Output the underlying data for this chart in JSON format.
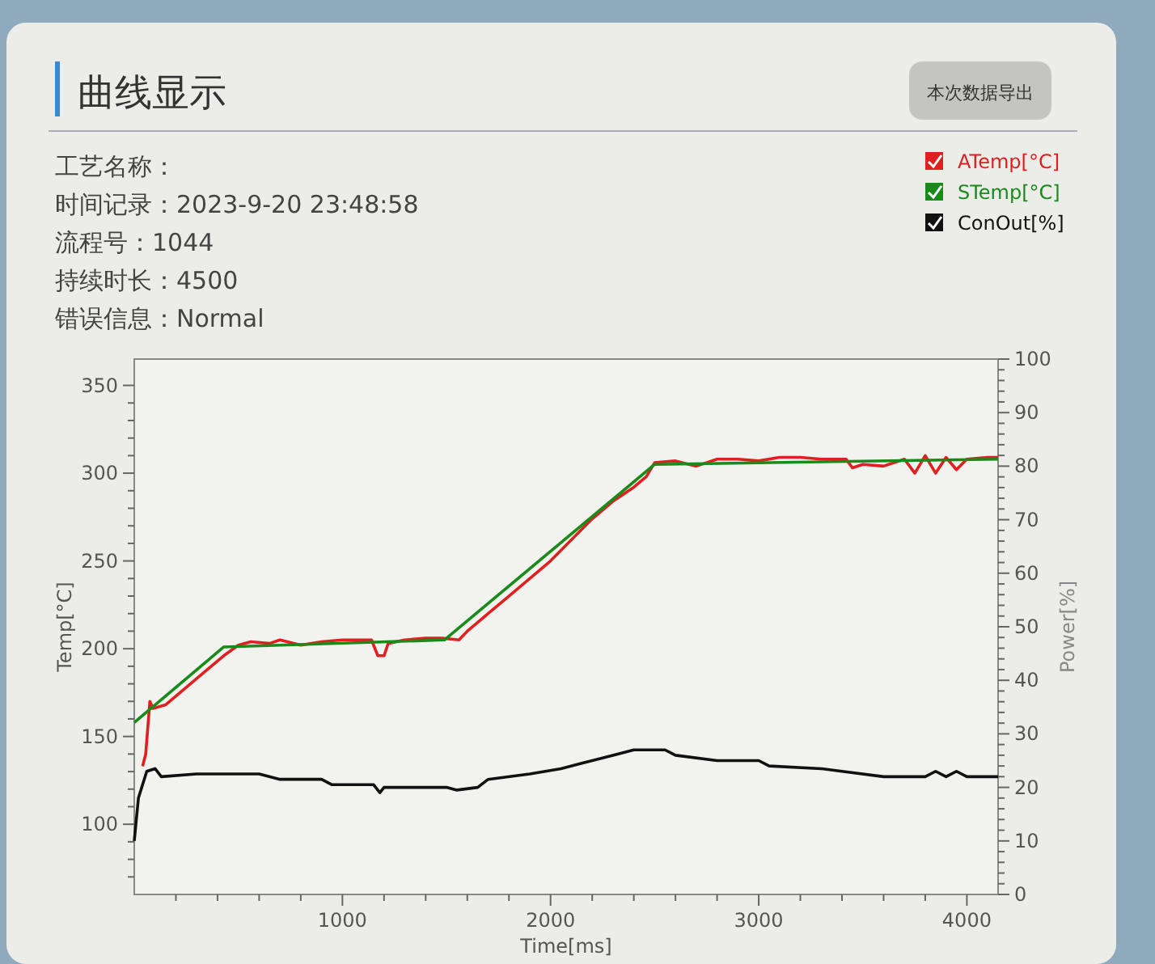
{
  "chart_data": {
    "type": "line",
    "title": "曲线显示",
    "xlabel": "Time[ms]",
    "ylabel": "Temp[°C]",
    "y2label": "Power[%]",
    "annotations": [
      "本次数据导出",
      "工艺名称：",
      "时间记录：2023-9-20 23:48:58",
      "流程号：1044",
      "持续时长：4500",
      "错误信息：Normal"
    ],
    "legend": "top right",
    "grid": false,
    "marker": "none",
    "line_style": "solid",
    "xlim": [
      0,
      4150
    ],
    "xticks": [
      {
        "value": 200,
        "label": null
      },
      {
        "value": 400,
        "label": null
      },
      {
        "value": 600,
        "label": null
      },
      {
        "value": 800,
        "label": null
      },
      1000,
      {
        "value": 1200,
        "label": null
      },
      {
        "value": 1400,
        "label": null
      },
      {
        "value": 1600,
        "label": null
      },
      {
        "value": 1800,
        "label": null
      },
      2000,
      {
        "value": 2200,
        "label": null
      },
      {
        "value": 2400,
        "label": null
      },
      {
        "value": 2600,
        "label": null
      },
      {
        "value": 2800,
        "label": null
      },
      3000,
      {
        "value": 3200,
        "label": null
      },
      {
        "value": 3400,
        "label": null
      },
      {
        "value": 3600,
        "label": null
      },
      {
        "value": 3800,
        "label": null
      },
      4000
    ],
    "ylim": [
      60,
      365
    ],
    "yticks": [
      {
        "value": 70,
        "label": null
      },
      {
        "value": 80,
        "label": null
      },
      {
        "value": 90,
        "label": null
      },
      100,
      {
        "value": 110,
        "label": null
      },
      {
        "value": 120,
        "label": null
      },
      {
        "value": 130,
        "label": null
      },
      {
        "value": 140,
        "label": null
      },
      150,
      {
        "value": 160,
        "label": null
      },
      {
        "value": 170,
        "label": null
      },
      {
        "value": 180,
        "label": null
      },
      {
        "value": 190,
        "label": null
      },
      200,
      {
        "value": 210,
        "label": null
      },
      {
        "value": 220,
        "label": null
      },
      {
        "value": 230,
        "label": null
      },
      {
        "value": 240,
        "label": null
      },
      250,
      {
        "value": 260,
        "label": null
      },
      {
        "value": 270,
        "label": null
      },
      {
        "value": 280,
        "label": null
      },
      {
        "value": 290,
        "label": null
      },
      300,
      {
        "value": 310,
        "label": null
      },
      {
        "value": 320,
        "label": null
      },
      {
        "value": 330,
        "label": null
      },
      {
        "value": 340,
        "label": null
      },
      350
    ],
    "y2lim": [
      0,
      100
    ],
    "y2ticks": [
      0,
      {
        "value": 2,
        "label": null
      },
      {
        "value": 4,
        "label": null
      },
      {
        "value": 6,
        "label": null
      },
      {
        "value": 8,
        "label": null
      },
      10,
      {
        "value": 12,
        "label": null
      },
      {
        "value": 14,
        "label": null
      },
      {
        "value": 16,
        "label": null
      },
      {
        "value": 18,
        "label": null
      },
      20,
      {
        "value": 22,
        "label": null
      },
      {
        "value": 24,
        "label": null
      },
      {
        "value": 26,
        "label": null
      },
      {
        "value": 28,
        "label": null
      },
      30,
      {
        "value": 32,
        "label": null
      },
      {
        "value": 34,
        "label": null
      },
      {
        "value": 36,
        "label": null
      },
      {
        "value": 38,
        "label": null
      },
      40,
      {
        "value": 42,
        "label": null
      },
      {
        "value": 44,
        "label": null
      },
      {
        "value": 46,
        "label": null
      },
      {
        "value": 48,
        "label": null
      },
      50,
      {
        "value": 52,
        "label": null
      },
      {
        "value": 54,
        "label": null
      },
      {
        "value": 56,
        "label": null
      },
      {
        "value": 58,
        "label": null
      },
      60,
      {
        "value": 62,
        "label": null
      },
      {
        "value": 64,
        "label": null
      },
      {
        "value": 66,
        "label": null
      },
      {
        "value": 68,
        "label": null
      },
      70,
      {
        "value": 72,
        "label": null
      },
      {
        "value": 74,
        "label": null
      },
      {
        "value": 76,
        "label": null
      },
      {
        "value": 78,
        "label": null
      },
      80,
      {
        "value": 82,
        "label": null
      },
      {
        "value": 84,
        "label": null
      },
      {
        "value": 86,
        "label": null
      },
      {
        "value": 88,
        "label": null
      },
      90,
      {
        "value": 92,
        "label": null
      },
      {
        "value": 94,
        "label": null
      },
      {
        "value": 96,
        "label": null
      },
      {
        "value": 98,
        "label": null
      },
      100
    ],
    "series": [
      {
        "name": "ATemp[°C]",
        "color": "#e02020",
        "x": [
          40,
          55,
          75,
          90,
          150,
          250,
          350,
          430,
          500,
          560,
          650,
          700,
          800,
          900,
          1000,
          1080,
          1140,
          1170,
          1200,
          1220,
          1300,
          1400,
          1480,
          1560,
          1600,
          1700,
          1800,
          1900,
          2000,
          2100,
          2200,
          2300,
          2400,
          2460,
          2500,
          2600,
          2700,
          2800,
          2900,
          3000,
          3100,
          3200,
          3300,
          3420,
          3450,
          3500,
          3600,
          3700,
          3750,
          3800,
          3850,
          3900,
          3950,
          4000,
          4100,
          4150
        ],
        "values": [
          133,
          140,
          170,
          166,
          168,
          178,
          188,
          196,
          202,
          204,
          203,
          205,
          202,
          204,
          205,
          205,
          205,
          196,
          196,
          203,
          205,
          206,
          206,
          205,
          210,
          220,
          230,
          240,
          250,
          262,
          274,
          284,
          292,
          298,
          306,
          307,
          304,
          308,
          308,
          307,
          309,
          309,
          308,
          308,
          303,
          305,
          304,
          308,
          300,
          310,
          300,
          309,
          302,
          308,
          309,
          309
        ]
      },
      {
        "name": "STemp[°C]",
        "color": "#1a8a1a",
        "x": [
          0,
          430,
          1490,
          2500,
          4150
        ],
        "values": [
          158,
          201,
          205,
          305,
          308
        ]
      },
      {
        "name": "ConOut[%]",
        "color": "#111111",
        "axis": "y2",
        "x": [
          0,
          20,
          60,
          100,
          130,
          300,
          600,
          700,
          900,
          950,
          1150,
          1180,
          1200,
          1500,
          1550,
          1650,
          1700,
          1900,
          2050,
          2150,
          2250,
          2400,
          2550,
          2600,
          2800,
          3000,
          3050,
          3300,
          3400,
          3600,
          3800,
          3850,
          3900,
          3950,
          4000,
          4150
        ],
        "values": [
          10,
          18,
          23,
          23.5,
          22,
          22.5,
          22.5,
          21.5,
          21.5,
          20.5,
          20.5,
          19,
          20,
          20,
          19.5,
          20,
          21.5,
          22.5,
          23.5,
          24.5,
          25.5,
          27,
          27,
          26,
          25,
          25,
          24,
          23.5,
          23,
          22,
          22,
          23,
          22,
          23,
          22,
          22
        ]
      }
    ]
  }
}
